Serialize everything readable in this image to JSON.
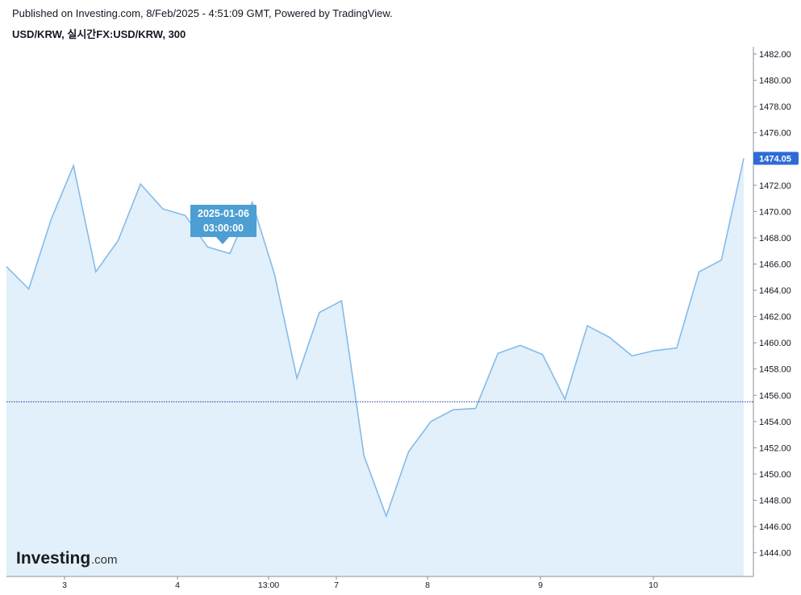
{
  "header": {
    "published": "Published on Investing.com, 8/Feb/2025 - 4:51:09 GMT, Powered by TradingView.",
    "symbol": "USD/KRW, 실시간FX:USD/KRW, 300"
  },
  "logo": {
    "main": "Investing",
    "suffix": ".com"
  },
  "tooltip": {
    "date": "2025-01-06",
    "time": "03:00:00"
  },
  "colors": {
    "line": "#85bbe9",
    "area": "#e1f0fa",
    "reference_line": "#1e3f8c",
    "price_badge": "#2e6bd6",
    "tooltip_bg": "#4d9ed2"
  },
  "chart_data": {
    "type": "area",
    "title": "USD/KRW, 실시간FX:USD/KRW, 300",
    "x_ticks": [
      "3",
      "4",
      "13:00",
      "7",
      "8",
      "9",
      "10"
    ],
    "y_ticks": [
      "1444.00",
      "1446.00",
      "1448.00",
      "1450.00",
      "1452.00",
      "1454.00",
      "1456.00",
      "1458.00",
      "1460.00",
      "1462.00",
      "1464.00",
      "1466.00",
      "1468.00",
      "1470.00",
      "1472.00",
      "1474.00",
      "1476.00",
      "1478.00",
      "1480.00",
      "1482.00"
    ],
    "ylim": [
      1442.0,
      1482.5
    ],
    "reference_value": 1455.5,
    "last_value": "1474.05",
    "series": [
      {
        "values": [
          1465.8,
          1464.1,
          1469.4,
          1473.5,
          1465.4,
          1467.8,
          1472.1,
          1470.2,
          1469.7,
          1467.3,
          1466.8,
          1470.7,
          1465.2,
          1457.3,
          1462.3,
          1463.2,
          1451.4,
          1446.8,
          1451.7,
          1454.0,
          1454.9,
          1455.0,
          1459.2,
          1459.8,
          1459.1,
          1455.7,
          1461.3,
          1460.4,
          1459.0,
          1459.4,
          1459.6,
          1465.4,
          1466.3,
          1474.05
        ]
      }
    ],
    "grid": false
  }
}
